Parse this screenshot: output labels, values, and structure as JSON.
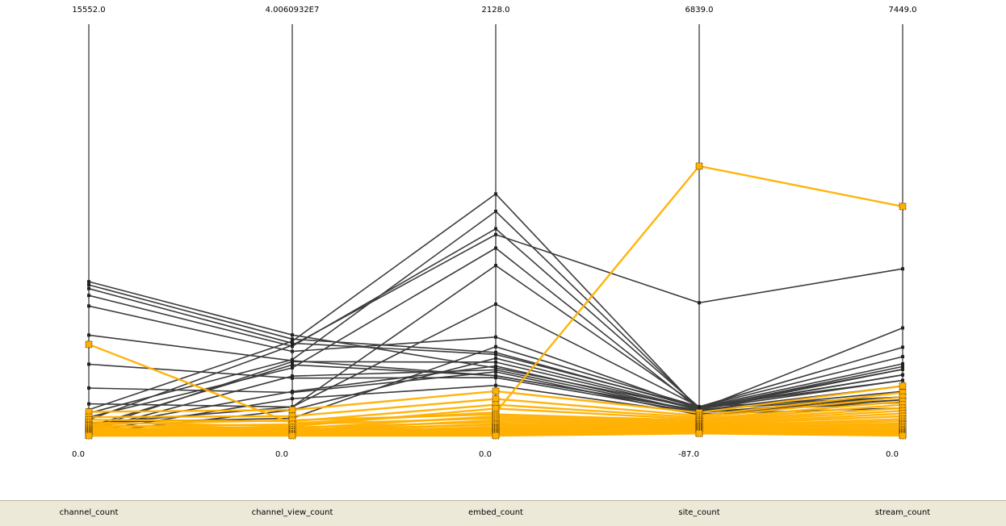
{
  "chart_data": {
    "type": "parallel_coordinates",
    "dimensions": [
      {
        "name": "channel_count",
        "max": "15552.0",
        "min": "0.0",
        "max_value": 15552,
        "min_value": 0
      },
      {
        "name": "channel_view_count",
        "max": "4.0060932E7",
        "min": "0.0",
        "max_value": 40060932,
        "min_value": 0
      },
      {
        "name": "embed_count",
        "max": "2128.0",
        "min": "0.0",
        "max_value": 2128,
        "min_value": 0
      },
      {
        "name": "site_count",
        "max": "6839.0",
        "min": "-87.0",
        "max_value": 6839,
        "min_value": -87
      },
      {
        "name": "stream_count",
        "max": "7449.0",
        "min": "0.0",
        "max_value": 7449,
        "min_value": 0
      }
    ],
    "colors": {
      "unselected": "#3c3c3c",
      "selected": "#ffb000",
      "selected_edge": "#d98c00",
      "footer": "#ece9d8"
    },
    "unselected_series": [
      [
        5820,
        9800000,
        350,
        370,
        1100
      ],
      [
        5700,
        9400000,
        430,
        380,
        1200
      ],
      [
        5560,
        9000000,
        420,
        400,
        1000
      ],
      [
        5300,
        8700000,
        1070,
        390,
        1300
      ],
      [
        4900,
        8200000,
        510,
        360,
        1000
      ],
      [
        3800,
        7300000,
        310,
        330,
        800
      ],
      [
        2700,
        5600000,
        300,
        300,
        700
      ],
      [
        1800,
        4200000,
        330,
        260,
        650
      ],
      [
        1200,
        2800000,
        680,
        400,
        700
      ],
      [
        980,
        9200000,
        1250,
        350,
        1200
      ],
      [
        850,
        7400000,
        1160,
        370,
        1250
      ],
      [
        700,
        6600000,
        970,
        360,
        1950
      ],
      [
        600,
        8800000,
        1040,
        2150,
        3020
      ],
      [
        500,
        1700000,
        460,
        400,
        1430
      ],
      [
        450,
        2800000,
        880,
        400,
        1600
      ],
      [
        350,
        6900000,
        310,
        340,
        900
      ],
      [
        300,
        4300000,
        360,
        310,
        650
      ],
      [
        250,
        7200000,
        380,
        350,
        700
      ],
      [
        200,
        5800000,
        340,
        310,
        600
      ],
      [
        150,
        3600000,
        260,
        280,
        500
      ],
      [
        100,
        2500000,
        400,
        360,
        1100
      ]
    ],
    "selected_series": [
      [
        3450,
        1200000,
        120,
        4450,
        4150
      ],
      [
        900,
        2500000,
        230,
        300,
        900
      ],
      [
        700,
        1900000,
        190,
        250,
        780
      ],
      [
        600,
        1400000,
        160,
        220,
        700
      ],
      [
        500,
        900000,
        140,
        190,
        620
      ],
      [
        420,
        1500000,
        110,
        170,
        560
      ],
      [
        380,
        700000,
        100,
        150,
        500
      ],
      [
        330,
        1100000,
        90,
        130,
        450
      ],
      [
        280,
        500000,
        80,
        110,
        400
      ],
      [
        240,
        800000,
        70,
        100,
        350
      ],
      [
        200,
        400000,
        60,
        80,
        300
      ],
      [
        180,
        600000,
        55,
        70,
        260
      ],
      [
        150,
        300000,
        45,
        60,
        220
      ],
      [
        120,
        450000,
        40,
        50,
        200
      ],
      [
        100,
        250000,
        35,
        40,
        170
      ],
      [
        80,
        350000,
        30,
        30,
        140
      ],
      [
        60,
        150000,
        25,
        20,
        110
      ],
      [
        50,
        200000,
        20,
        10,
        90
      ],
      [
        40,
        100000,
        15,
        0,
        70
      ],
      [
        30,
        80000,
        12,
        -10,
        50
      ],
      [
        20,
        60000,
        10,
        -20,
        35
      ],
      [
        10,
        40000,
        5,
        -30,
        20
      ],
      [
        0,
        20000,
        2,
        -40,
        10
      ],
      [
        0,
        0,
        0,
        -50,
        0
      ]
    ]
  }
}
